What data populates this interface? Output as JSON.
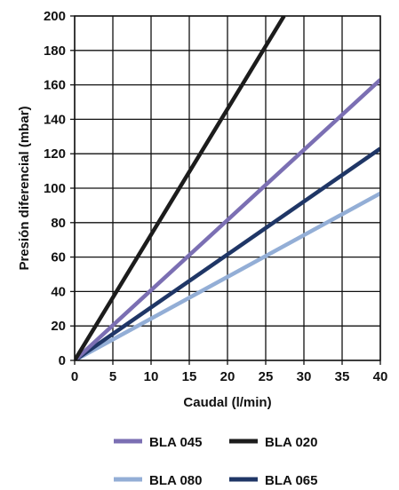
{
  "chart_data": {
    "type": "line",
    "xlabel": "Caudal (l/min)",
    "ylabel": "Presión diferencial (mbar)",
    "xlim": [
      0,
      40
    ],
    "ylim": [
      0,
      200
    ],
    "x_ticks": [
      "0",
      "5",
      "10",
      "15",
      "20",
      "25",
      "30",
      "35",
      "40"
    ],
    "y_ticks": [
      "0",
      "20",
      "40",
      "60",
      "80",
      "100",
      "120",
      "140",
      "160",
      "180",
      "200"
    ],
    "grid": true,
    "legend_position": "bottom",
    "series": [
      {
        "name": "BLA 045",
        "color": "#7b6fb3",
        "x": [
          0,
          40
        ],
        "y": [
          0,
          163
        ]
      },
      {
        "name": "BLA 020",
        "color": "#1c1c1c",
        "x": [
          0,
          27.4
        ],
        "y": [
          0,
          200
        ]
      },
      {
        "name": "BLA 080",
        "color": "#93aed6",
        "x": [
          0,
          40
        ],
        "y": [
          0,
          97
        ]
      },
      {
        "name": "BLA 065",
        "color": "#1f3666",
        "x": [
          0,
          40
        ],
        "y": [
          0,
          123
        ]
      }
    ]
  }
}
